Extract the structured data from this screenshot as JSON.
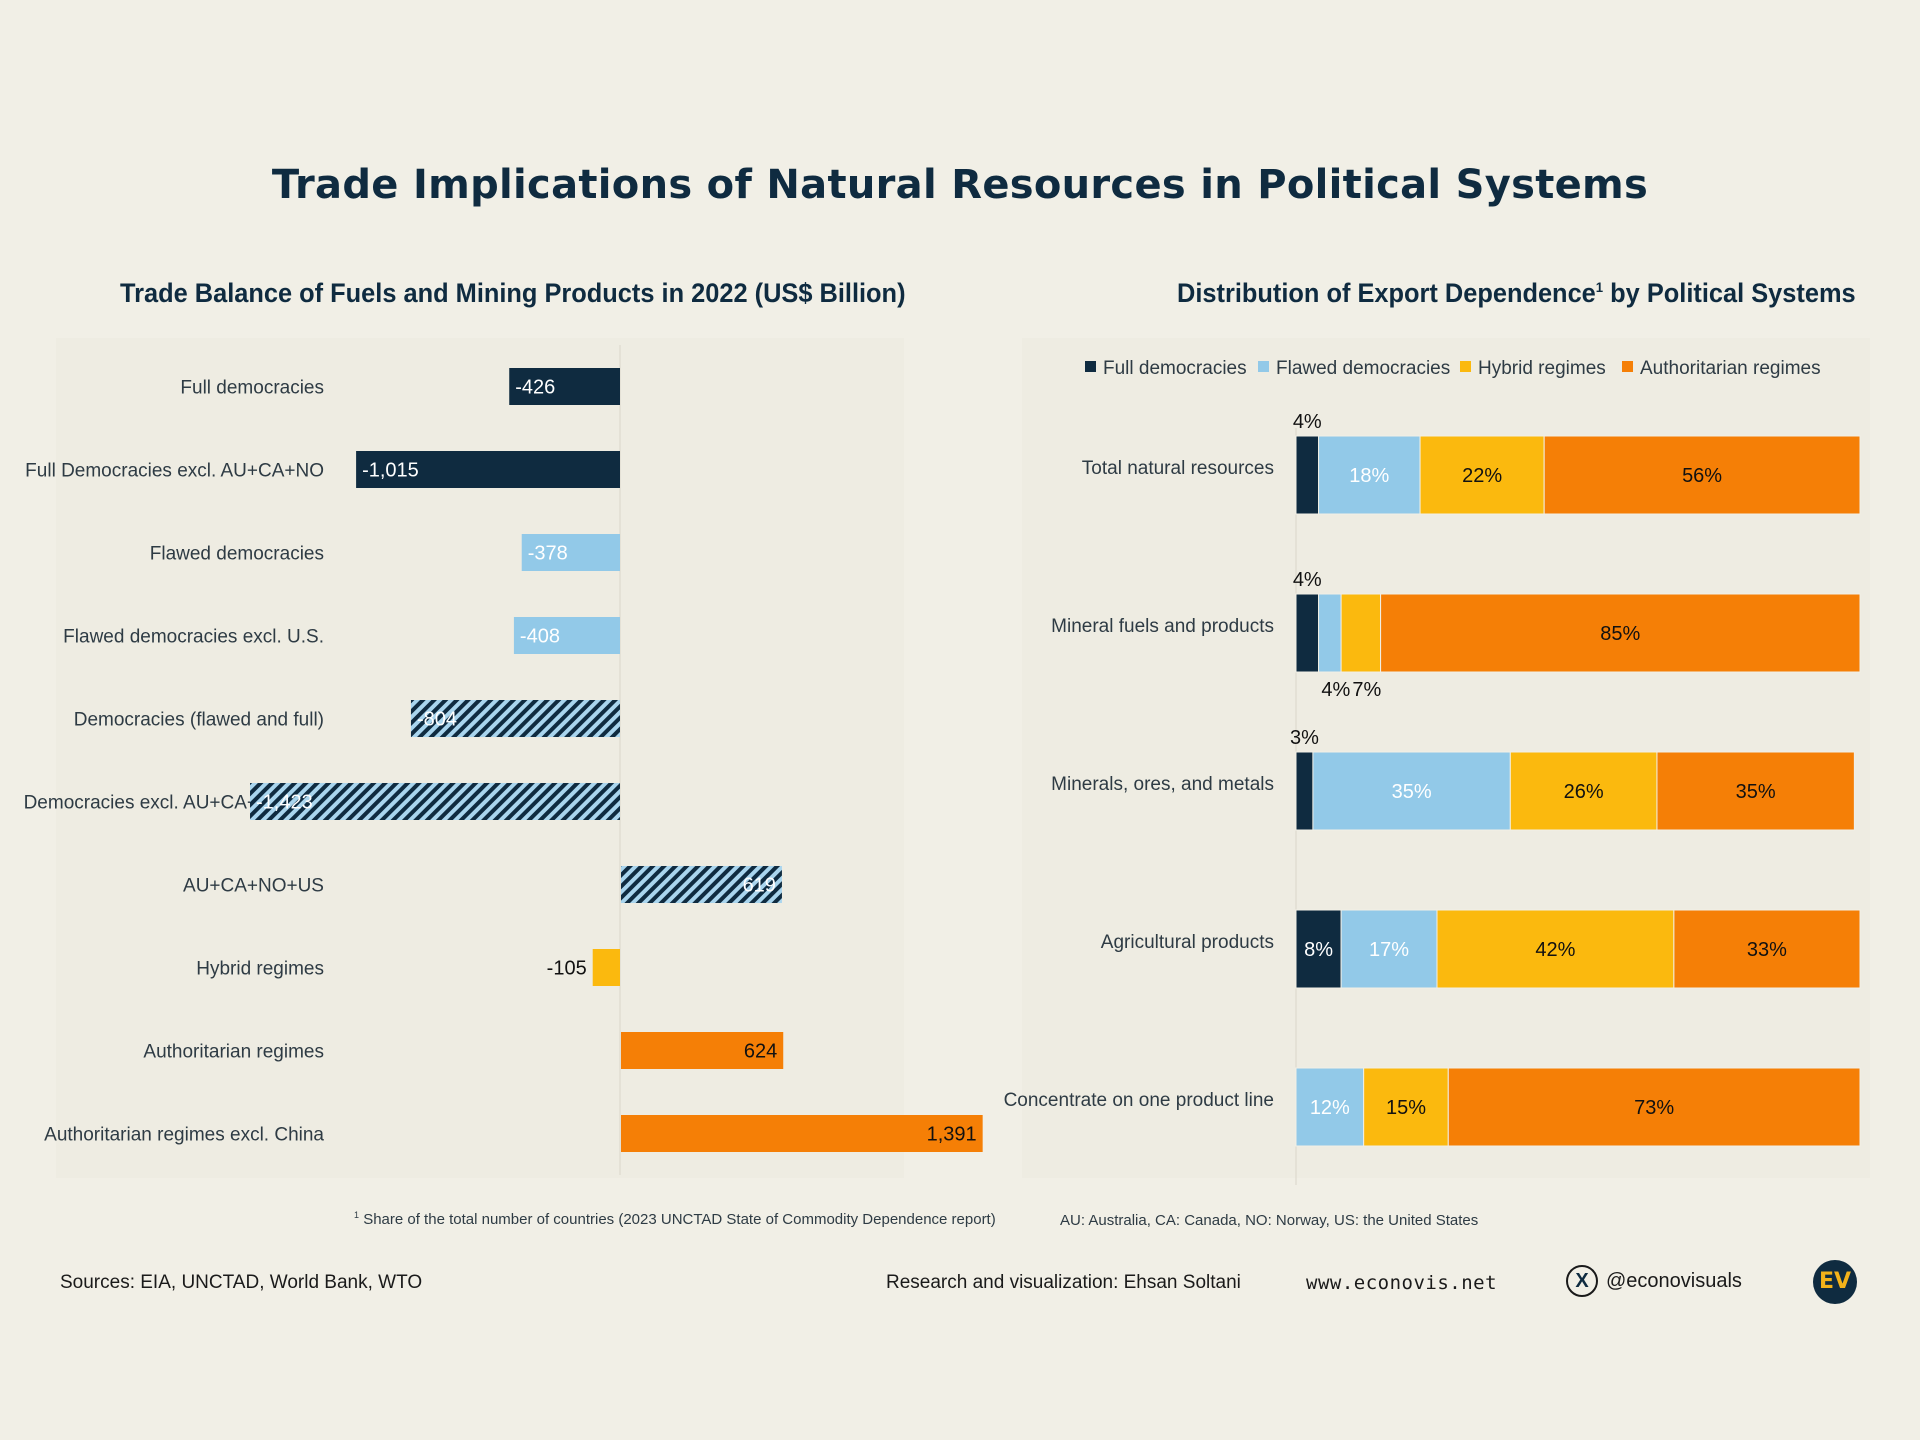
{
  "title": "Trade Implications of Natural Resources in Political Systems",
  "colors": {
    "full": "#0f2b40",
    "flawed": "#92c9e8",
    "hybrid": "#fbb90e",
    "authoritarian": "#f57f06",
    "background": "#f1efe6",
    "panel": "#eeece2"
  },
  "chart_data": [
    {
      "type": "bar",
      "orientation": "horizontal",
      "title": "Trade Balance of Fuels and Mining Products in 2022 (US$ Billion)",
      "categories": [
        "Full democracies",
        "Full Democracies excl. AU+CA+NO",
        "Flawed democracies",
        "Flawed democracies excl. U.S.",
        "Democracies (flawed and full)",
        "Democracies excl. AU+CA+NO+US",
        "AU+CA+NO+US",
        "Hybrid regimes",
        "Authoritarian regimes",
        "Authoritarian regimes excl. China"
      ],
      "values": [
        -426,
        -1015,
        -378,
        -408,
        -804,
        -1423,
        619,
        -105,
        624,
        1391
      ],
      "value_labels": [
        "-426",
        "-1,015",
        "-378",
        "-408",
        "-804",
        "-1,423",
        "619",
        "-105",
        "624",
        "1,391"
      ],
      "groups": [
        "full",
        "full",
        "flawed",
        "flawed",
        "democracies",
        "democracies",
        "democracies",
        "hybrid",
        "authoritarian",
        "authoritarian"
      ],
      "xlim": [
        -1500,
        1500
      ]
    },
    {
      "type": "bar",
      "orientation": "horizontal",
      "stacked": true,
      "title": "Distribution of Export Dependence",
      "title_footnote_mark": "1",
      "title_suffix": " by Political Systems",
      "categories": [
        "Total natural resources",
        "Mineral fuels and products",
        "Minerals, ores, and metals",
        "Agricultural products",
        "Concentrate on one product line"
      ],
      "series": [
        {
          "name": "Full democracies",
          "key": "full",
          "values": [
            4,
            4,
            3,
            8,
            0
          ]
        },
        {
          "name": "Flawed democracies",
          "key": "flawed",
          "values": [
            18,
            4,
            35,
            17,
            12
          ]
        },
        {
          "name": "Hybrid regimes",
          "key": "hybrid",
          "values": [
            22,
            7,
            26,
            42,
            15
          ]
        },
        {
          "name": "Authoritarian regimes",
          "key": "authoritarian",
          "values": [
            56,
            85,
            35,
            33,
            73
          ]
        }
      ],
      "xlim": [
        0,
        100
      ],
      "unit": "%"
    }
  ],
  "footnotes": {
    "left_mark": "1",
    "left": "Share of the total number of countries (2023 UNCTAD State of Commodity Dependence report)",
    "right": "AU: Australia, CA: Canada, NO: Norway, US: the United States"
  },
  "footer": {
    "sources": "Sources: EIA, UNCTAD, World Bank, WTO",
    "credit": "Research and visualization: Ehsan Soltani",
    "website": "www.econovis.net",
    "x_icon": "x-logo-icon",
    "x_glyph": "X",
    "handle": "@econovisuals",
    "logo": "EV"
  }
}
